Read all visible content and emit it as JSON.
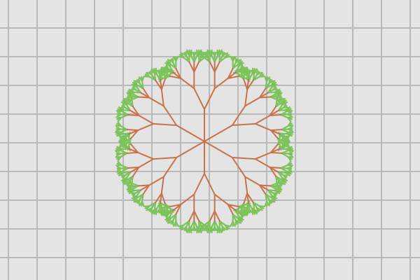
{
  "canvas": {
    "background_color": "#e4e4e4",
    "grid": {
      "visible": true,
      "line_color": "#b9b9b9"
    }
  },
  "symbol": {
    "type": "fractal-tree-radial",
    "icon_name": "circular-fractal-tree-icon",
    "branch_count": 6,
    "recursion_depth": 5,
    "trunk_color": "#c8734a",
    "leaf_color": "#7cc35b"
  }
}
